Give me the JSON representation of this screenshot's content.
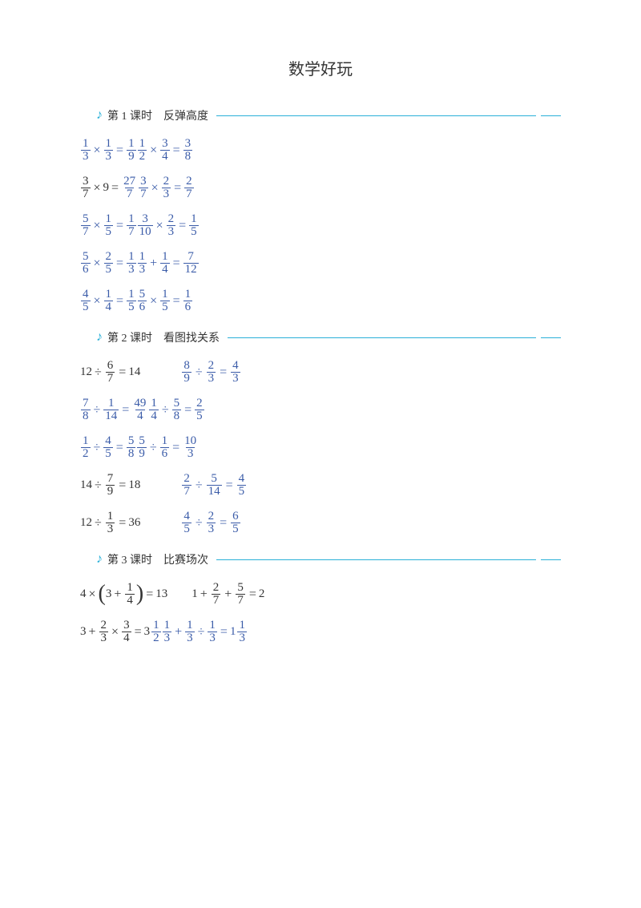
{
  "title": "数学好玩",
  "colors": {
    "accent": "#2ab0d8",
    "formula": "#3a5ba8",
    "text": "#333333",
    "background": "#ffffff"
  },
  "sections": [
    {
      "id": 1,
      "label": "第 1 课时　反弹高度"
    },
    {
      "id": 2,
      "label": "第 2 课时　看图找关系"
    },
    {
      "id": 3,
      "label": "第 3 课时　比赛场次"
    }
  ],
  "s1": {
    "r1": {
      "a": [
        "1",
        "3"
      ],
      "b": [
        "1",
        "3"
      ],
      "c": [
        "1",
        "9"
      ],
      "d": [
        "1",
        "2"
      ],
      "e": [
        "3",
        "4"
      ],
      "f": [
        "3",
        "8"
      ]
    },
    "r2": {
      "a": [
        "3",
        "7"
      ],
      "nine": "9",
      "b": [
        "27",
        "7"
      ],
      "c": [
        "3",
        "7"
      ],
      "d": [
        "2",
        "3"
      ],
      "e": [
        "2",
        "7"
      ]
    },
    "r3": {
      "a": [
        "5",
        "7"
      ],
      "b": [
        "1",
        "5"
      ],
      "c": [
        "1",
        "7"
      ],
      "d": [
        "3",
        "10"
      ],
      "e": [
        "2",
        "3"
      ],
      "f": [
        "1",
        "5"
      ]
    },
    "r4": {
      "a": [
        "5",
        "6"
      ],
      "b": [
        "2",
        "5"
      ],
      "c": [
        "1",
        "3"
      ],
      "d": [
        "1",
        "3"
      ],
      "e": [
        "1",
        "4"
      ],
      "f": [
        "7",
        "12"
      ]
    },
    "r5": {
      "a": [
        "4",
        "5"
      ],
      "b": [
        "1",
        "4"
      ],
      "c": [
        "1",
        "5"
      ],
      "d": [
        "5",
        "6"
      ],
      "e": [
        "1",
        "5"
      ],
      "f": [
        "1",
        "6"
      ]
    }
  },
  "s2": {
    "r1": {
      "twelve": "12",
      "a": [
        "6",
        "7"
      ],
      "r1v": "14",
      "b": [
        "8",
        "9"
      ],
      "c": [
        "2",
        "3"
      ],
      "d": [
        "4",
        "3"
      ]
    },
    "r2": {
      "a": [
        "7",
        "8"
      ],
      "b": [
        "1",
        "14"
      ],
      "c": [
        "49",
        "4"
      ],
      "d": [
        "1",
        "4"
      ],
      "e": [
        "5",
        "8"
      ],
      "f": [
        "2",
        "5"
      ]
    },
    "r3": {
      "a": [
        "1",
        "2"
      ],
      "b": [
        "4",
        "5"
      ],
      "c": [
        "5",
        "8"
      ],
      "d": [
        "5",
        "9"
      ],
      "e": [
        "1",
        "6"
      ],
      "f": [
        "10",
        "3"
      ]
    },
    "r4": {
      "fourteen": "14",
      "a": [
        "7",
        "9"
      ],
      "r4v": "18",
      "b": [
        "2",
        "7"
      ],
      "c": [
        "5",
        "14"
      ],
      "d": [
        "4",
        "5"
      ]
    },
    "r5": {
      "twelve": "12",
      "a": [
        "1",
        "3"
      ],
      "r5v": "36",
      "b": [
        "4",
        "5"
      ],
      "c": [
        "2",
        "3"
      ],
      "d": [
        "6",
        "5"
      ]
    }
  },
  "s3": {
    "r1": {
      "four": "4",
      "three": "3",
      "q": [
        "1",
        "4"
      ],
      "r1v": "13",
      "one": "1",
      "a": [
        "2",
        "7"
      ],
      "b": [
        "5",
        "7"
      ],
      "two": "2"
    },
    "r2": {
      "three": "3",
      "a": [
        "2",
        "3"
      ],
      "b": [
        "3",
        "4"
      ],
      "c": [
        "1",
        "2"
      ],
      "d": [
        "1",
        "3"
      ],
      "wholeA": "3",
      "e": [
        "1",
        "3"
      ],
      "f": [
        "1",
        "3"
      ],
      "wholeB": "1",
      "g": [
        "1",
        "3"
      ]
    }
  }
}
